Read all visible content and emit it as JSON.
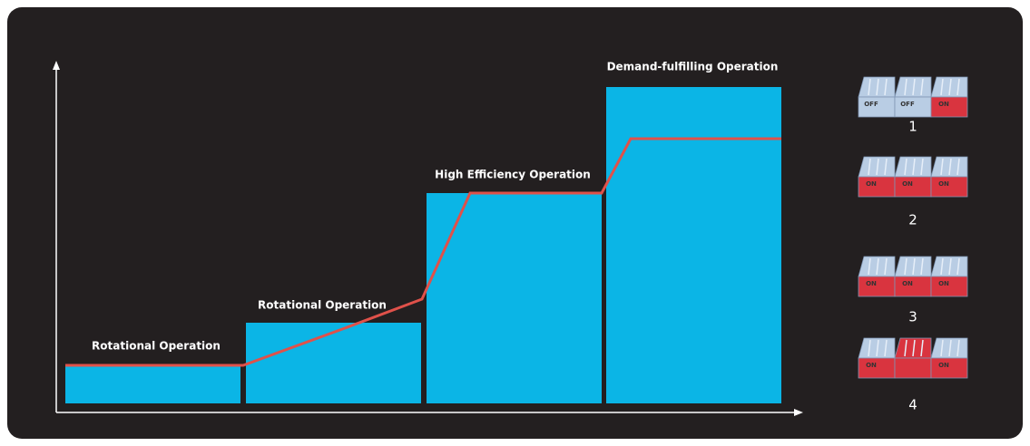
{
  "stages": [
    {
      "label": "Rotational Operation"
    },
    {
      "label": "Rotational Operation"
    },
    {
      "label": "High Efficiency Operation"
    },
    {
      "label": "Demand-fulfilling Operation"
    }
  ],
  "modules": [
    {
      "number": "1",
      "labels": [
        "OFF",
        "OFF",
        "ON"
      ]
    },
    {
      "number": "2",
      "labels": [
        "ON",
        "ON",
        "ON"
      ]
    },
    {
      "number": "3",
      "labels": [
        "ON",
        "ON",
        "ON"
      ]
    },
    {
      "number": "4",
      "labels": [
        "ON",
        "ON"
      ]
    }
  ]
}
